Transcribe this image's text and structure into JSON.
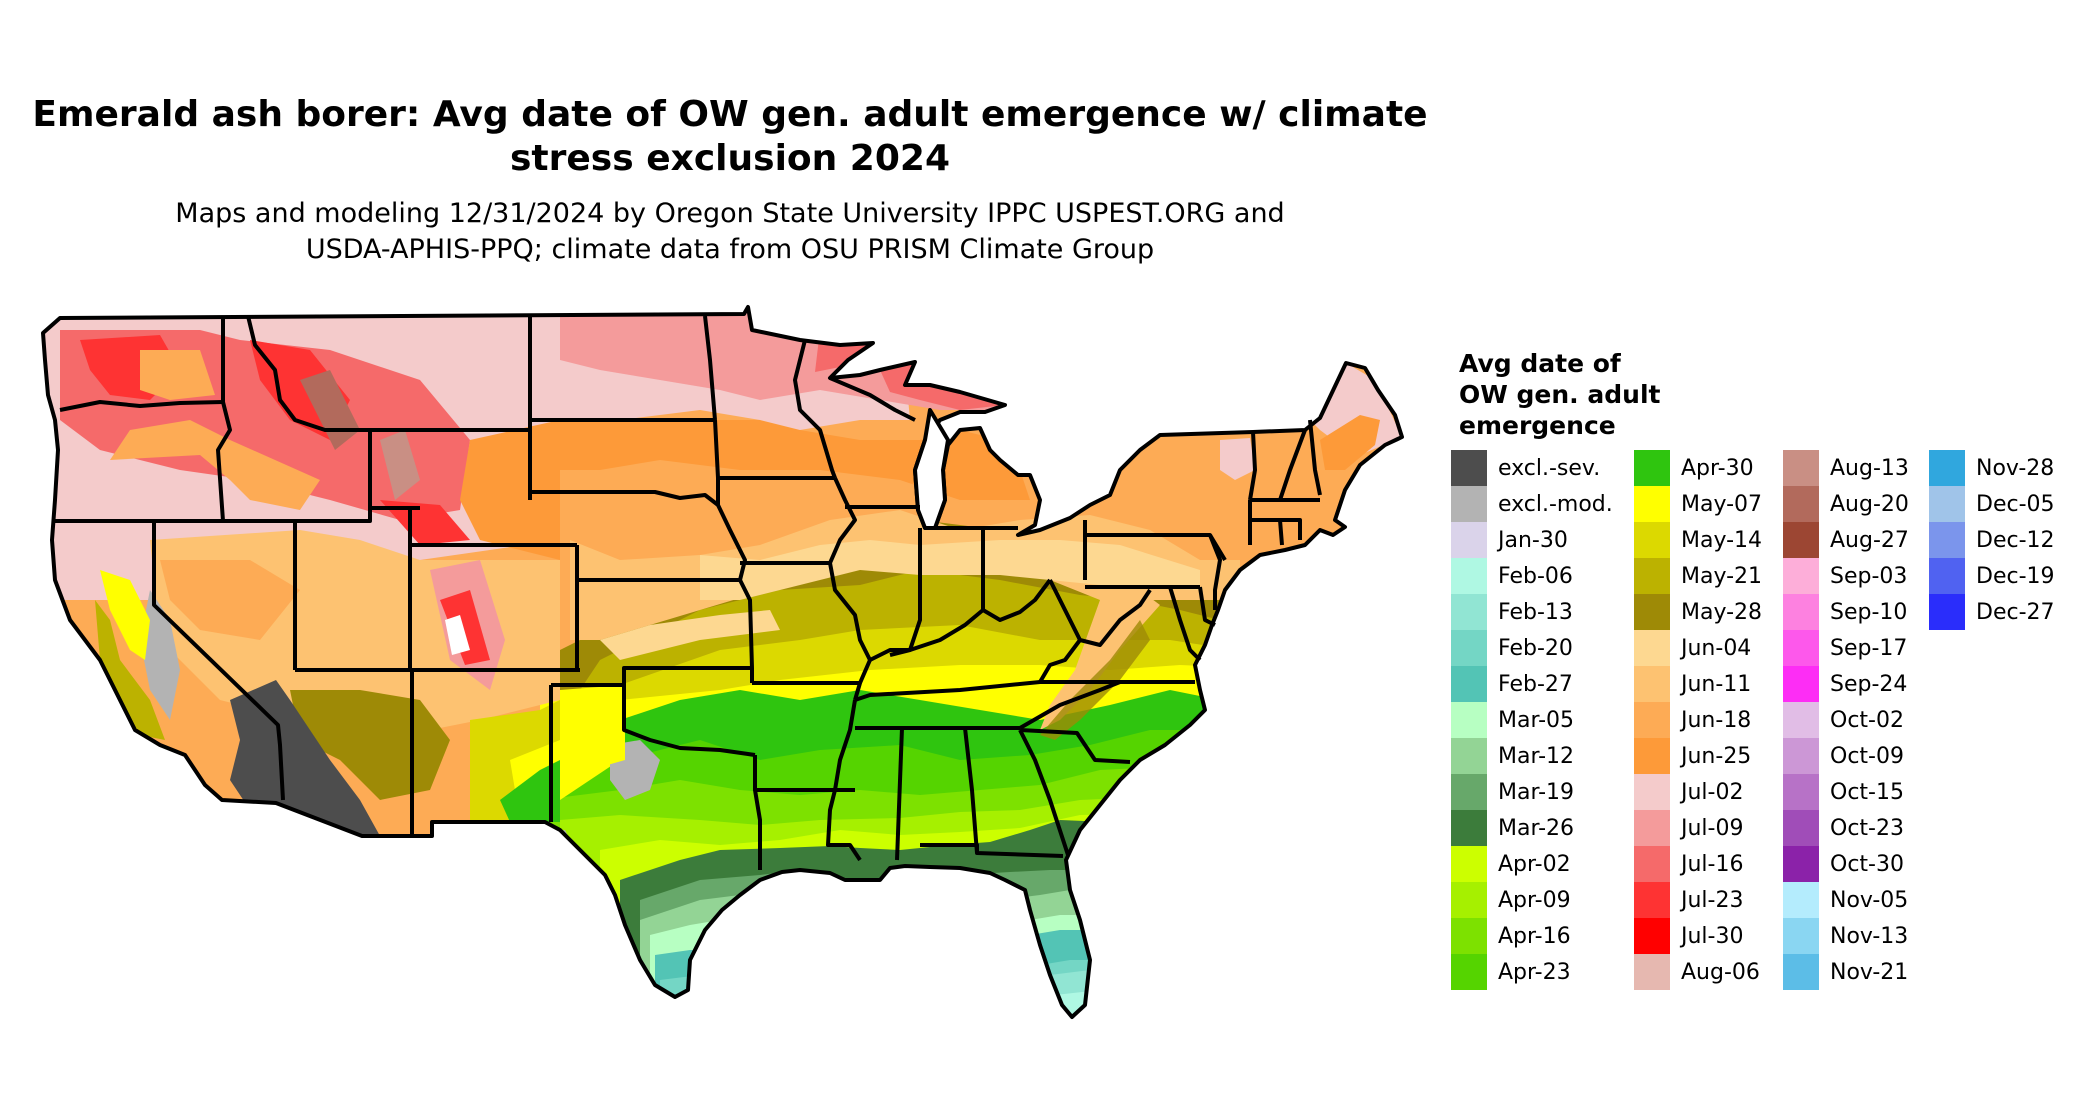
{
  "title": {
    "line1": "Emerald ash borer: Avg date of OW gen. adult emergence w/ climate",
    "line2": "stress exclusion 2024"
  },
  "subtitle": {
    "line1": "Maps and modeling 12/31/2024 by Oregon State University IPPC USPEST.ORG and",
    "line2": "USDA-APHIS-PPQ; climate data from OSU PRISM Climate Group"
  },
  "legend": {
    "title_lines": [
      "Avg date of",
      "OW gen. adult",
      "emergence"
    ],
    "columns": [
      [
        {
          "label": "excl.-sev.",
          "color": "#4d4d4d"
        },
        {
          "label": "excl.-mod.",
          "color": "#b3b3b3"
        },
        {
          "label": "Jan-30",
          "color": "#dad3ea"
        },
        {
          "label": "Feb-06",
          "color": "#aff8e3"
        },
        {
          "label": "Feb-13",
          "color": "#91e5d3"
        },
        {
          "label": "Feb-20",
          "color": "#74d6c5"
        },
        {
          "label": "Feb-27",
          "color": "#53c4b5"
        },
        {
          "label": "Mar-05",
          "color": "#b7ffc2"
        },
        {
          "label": "Mar-12",
          "color": "#93d495"
        },
        {
          "label": "Mar-19",
          "color": "#67a86a"
        },
        {
          "label": "Mar-26",
          "color": "#3c7c3b"
        },
        {
          "label": "Apr-02",
          "color": "#ccff00"
        },
        {
          "label": "Apr-09",
          "color": "#a6f000"
        },
        {
          "label": "Apr-16",
          "color": "#7de100"
        },
        {
          "label": "Apr-23",
          "color": "#55d400"
        }
      ],
      [
        {
          "label": "Apr-30",
          "color": "#2fc50f"
        },
        {
          "label": "May-07",
          "color": "#ffff00"
        },
        {
          "label": "May-14",
          "color": "#dcd900"
        },
        {
          "label": "May-21",
          "color": "#bcb200"
        },
        {
          "label": "May-28",
          "color": "#9e8a06"
        },
        {
          "label": "Jun-04",
          "color": "#fdd891"
        },
        {
          "label": "Jun-11",
          "color": "#fdc271"
        },
        {
          "label": "Jun-18",
          "color": "#fdab55"
        },
        {
          "label": "Jun-25",
          "color": "#fd9a39"
        },
        {
          "label": "Jul-02",
          "color": "#f4cbcb"
        },
        {
          "label": "Jul-09",
          "color": "#f49b9b"
        },
        {
          "label": "Jul-16",
          "color": "#f56a6a"
        },
        {
          "label": "Jul-23",
          "color": "#fe3333"
        },
        {
          "label": "Jul-30",
          "color": "#ff0000"
        },
        {
          "label": "Aug-06",
          "color": "#e6b8b0"
        }
      ],
      [
        {
          "label": "Aug-13",
          "color": "#c98f84"
        },
        {
          "label": "Aug-20",
          "color": "#b26a5c"
        },
        {
          "label": "Aug-27",
          "color": "#9c4633"
        },
        {
          "label": "Sep-03",
          "color": "#fdaed9"
        },
        {
          "label": "Sep-10",
          "color": "#fd81e0"
        },
        {
          "label": "Sep-17",
          "color": "#fd58eb"
        },
        {
          "label": "Sep-24",
          "color": "#fd2df5"
        },
        {
          "label": "Oct-02",
          "color": "#e1bde6"
        },
        {
          "label": "Oct-09",
          "color": "#cc97d6"
        },
        {
          "label": "Oct-15",
          "color": "#b772c7"
        },
        {
          "label": "Oct-23",
          "color": "#a04db8"
        },
        {
          "label": "Oct-30",
          "color": "#8b22a9"
        },
        {
          "label": "Nov-05",
          "color": "#b4ecfd"
        },
        {
          "label": "Nov-13",
          "color": "#8ad6f2"
        },
        {
          "label": "Nov-21",
          "color": "#5cbde7"
        }
      ],
      [
        {
          "label": "Nov-28",
          "color": "#30a7de"
        },
        {
          "label": "Dec-05",
          "color": "#a0c4e9"
        },
        {
          "label": "Dec-12",
          "color": "#7b95ec"
        },
        {
          "label": "Dec-19",
          "color": "#5062f1"
        },
        {
          "label": "Dec-27",
          "color": "#2a2dfb"
        }
      ]
    ]
  },
  "map": {
    "border_color": "#000000",
    "water_color": "#ffffff"
  }
}
